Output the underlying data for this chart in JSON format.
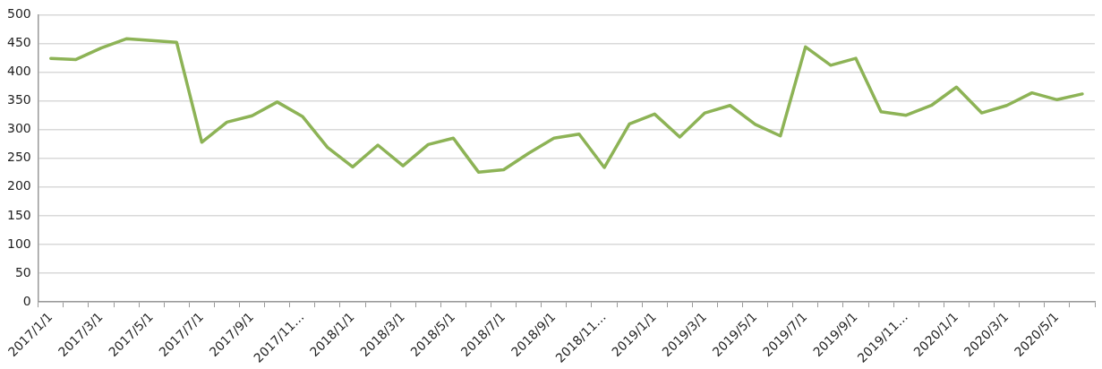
{
  "chart_data": {
    "type": "line",
    "categories": [
      "2017/1/1",
      null,
      "2017/3/1",
      null,
      "2017/5/1",
      null,
      "2017/7/1",
      null,
      "2017/9/1",
      null,
      "2017/11…",
      null,
      "2018/1/1",
      null,
      "2018/3/1",
      null,
      "2018/5/1",
      null,
      "2018/7/1",
      null,
      "2018/9/1",
      null,
      "2018/11…",
      null,
      "2019/1/1",
      null,
      "2019/3/1",
      null,
      "2019/5/1",
      null,
      "2019/7/1",
      null,
      "2019/9/1",
      null,
      "2019/11…",
      null,
      "2020/1/1",
      null,
      "2020/3/1",
      null,
      "2020/5/1",
      null
    ],
    "series": [
      {
        "color": "#8db356",
        "values": [
          424,
          422,
          442,
          458,
          455,
          452,
          278,
          313,
          324,
          348,
          323,
          269,
          235,
          273,
          237,
          274,
          285,
          226,
          230,
          259,
          285,
          292,
          234,
          310,
          327,
          287,
          329,
          342,
          309,
          289,
          444,
          412,
          424,
          331,
          325,
          342,
          374,
          329,
          342,
          364,
          352,
          362
        ]
      }
    ],
    "ylim": [
      0,
      500
    ],
    "yticks": [
      0,
      50,
      100,
      150,
      200,
      250,
      300,
      350,
      400,
      450,
      500
    ],
    "grid": "y",
    "legend": false,
    "marker": "none",
    "line_style": "solid"
  }
}
